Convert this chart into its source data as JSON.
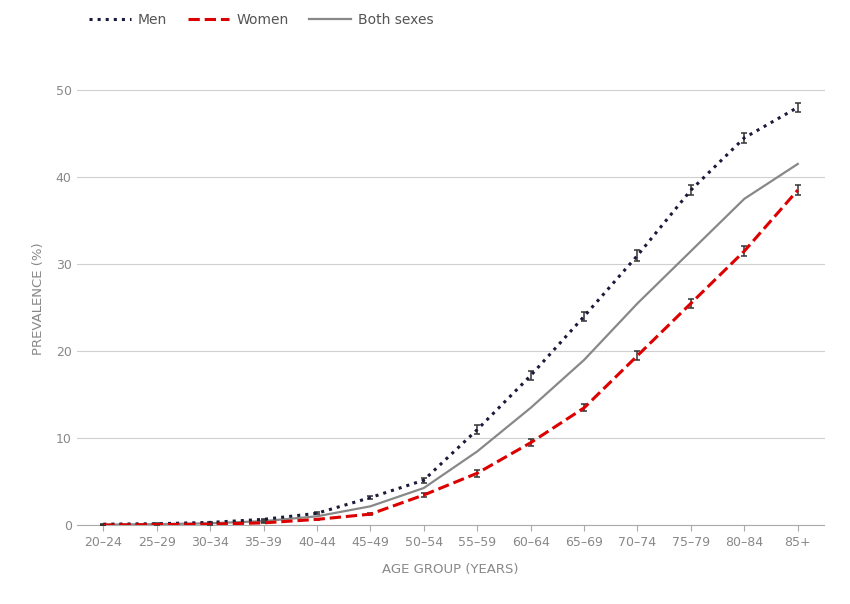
{
  "age_groups": [
    "20–24",
    "25–29",
    "30–34",
    "35–39",
    "40–44",
    "45–49",
    "50–54",
    "55–59",
    "60–64",
    "65–69",
    "70–74",
    "75–79",
    "80–84",
    "85+"
  ],
  "men": {
    "values": [
      0.15,
      0.2,
      0.35,
      0.7,
      1.4,
      3.2,
      5.2,
      11.0,
      17.2,
      24.0,
      31.0,
      38.5,
      44.5,
      48.0
    ],
    "err_low": [
      0.05,
      0.05,
      0.05,
      0.08,
      0.12,
      0.2,
      0.3,
      0.5,
      0.5,
      0.5,
      0.6,
      0.6,
      0.6,
      0.5
    ],
    "err_high": [
      0.05,
      0.05,
      0.05,
      0.08,
      0.12,
      0.2,
      0.3,
      0.5,
      0.5,
      0.5,
      0.6,
      0.6,
      0.6,
      0.5
    ],
    "color": "#1a1a3a",
    "linestyle": "dotted",
    "dot_size": 3.5,
    "linewidth": 2.2,
    "label": "Men"
  },
  "women": {
    "values": [
      0.05,
      0.1,
      0.15,
      0.3,
      0.7,
      1.3,
      3.5,
      6.0,
      9.5,
      13.5,
      19.5,
      25.5,
      31.5,
      38.5
    ],
    "err_low": [
      0.03,
      0.03,
      0.04,
      0.05,
      0.08,
      0.12,
      0.25,
      0.4,
      0.4,
      0.4,
      0.5,
      0.5,
      0.55,
      0.55
    ],
    "err_high": [
      0.03,
      0.03,
      0.04,
      0.05,
      0.08,
      0.12,
      0.25,
      0.4,
      0.4,
      0.4,
      0.5,
      0.5,
      0.55,
      0.55
    ],
    "color": "#dd0000",
    "linestyle": "dashed",
    "linewidth": 2.2,
    "label": "Women"
  },
  "both": {
    "values": [
      0.1,
      0.15,
      0.25,
      0.5,
      1.05,
      2.2,
      4.3,
      8.5,
      13.5,
      19.0,
      25.5,
      31.5,
      37.5,
      41.5
    ],
    "color": "#888888",
    "linestyle": "solid",
    "linewidth": 1.6,
    "label": "Both sexes"
  },
  "xlabel": "AGE GROUP (YEARS)",
  "ylabel": "PREVALENCE (%)",
  "ylim": [
    0,
    52
  ],
  "yticks": [
    0,
    10,
    20,
    30,
    40,
    50
  ],
  "background_color": "#ffffff",
  "grid_color": "#d0d0d0",
  "axis_label_fontsize": 9.5,
  "tick_fontsize": 9,
  "legend_fontsize": 10,
  "tick_color": "#888888",
  "spine_color": "#aaaaaa"
}
